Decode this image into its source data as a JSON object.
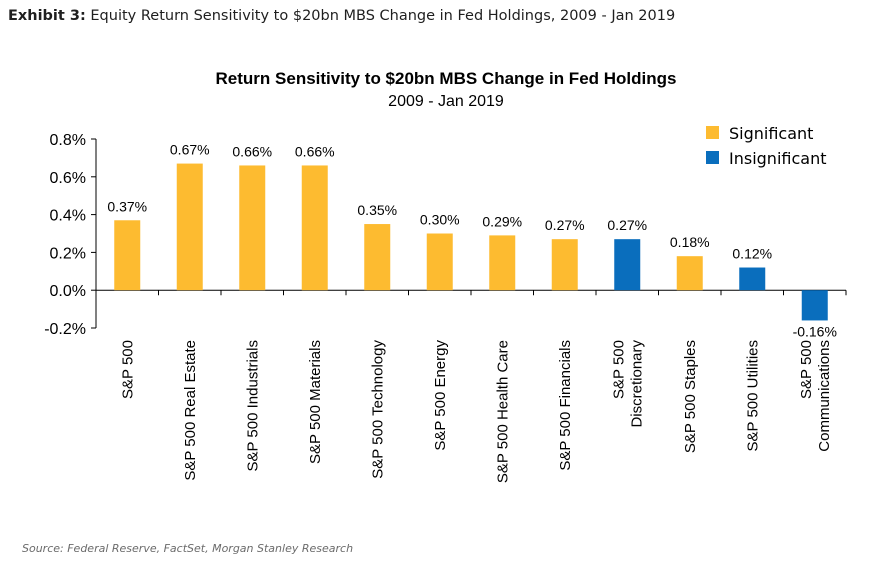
{
  "header": {
    "exhibit_label": "Exhibit 3:",
    "exhibit_text": "Equity Return Sensitivity to $20bn MBS Change in Fed Holdings, 2009 - Jan 2019"
  },
  "footer": {
    "source": "Source: Federal Reserve, FactSet, Morgan Stanley Research"
  },
  "chart_data": {
    "type": "bar",
    "title": "Return Sensitivity to $20bn MBS Change in Fed Holdings",
    "subtitle": "2009 - Jan 2019",
    "xlabel": "",
    "ylabel": "",
    "ylim": [
      -0.2,
      0.8
    ],
    "yticks": [
      0.8,
      0.6,
      0.4,
      0.2,
      0.0,
      -0.2
    ],
    "ytick_labels": [
      "0.8%",
      "0.6%",
      "0.4%",
      "0.2%",
      "0.0%",
      "-0.2%"
    ],
    "grid": false,
    "legend_position": "top-right",
    "legend": [
      {
        "label": "Significant",
        "color": "#FDBB30"
      },
      {
        "label": "Insignificant",
        "color": "#0A6EBD"
      }
    ],
    "categories": [
      [
        "S&P 500"
      ],
      [
        "S&P 500 Real Estate"
      ],
      [
        "S&P 500 Industrials"
      ],
      [
        "S&P 500 Materials"
      ],
      [
        "S&P 500 Technology"
      ],
      [
        "S&P 500 Energy"
      ],
      [
        "S&P 500 Health Care"
      ],
      [
        "S&P 500 Financials"
      ],
      [
        "S&P 500",
        "Discretionary"
      ],
      [
        "S&P 500 Staples"
      ],
      [
        "S&P 500 Utilities"
      ],
      [
        "S&P 500",
        "Communications"
      ]
    ],
    "values": [
      0.37,
      0.67,
      0.66,
      0.66,
      0.35,
      0.3,
      0.29,
      0.27,
      0.27,
      0.18,
      0.12,
      -0.16
    ],
    "labels": [
      "0.37%",
      "0.67%",
      "0.66%",
      "0.66%",
      "0.35%",
      "0.30%",
      "0.29%",
      "0.27%",
      "0.27%",
      "0.18%",
      "0.12%",
      "-0.16%"
    ],
    "significance": [
      "Significant",
      "Significant",
      "Significant",
      "Significant",
      "Significant",
      "Significant",
      "Significant",
      "Significant",
      "Insignificant",
      "Significant",
      "Insignificant",
      "Insignificant"
    ]
  }
}
